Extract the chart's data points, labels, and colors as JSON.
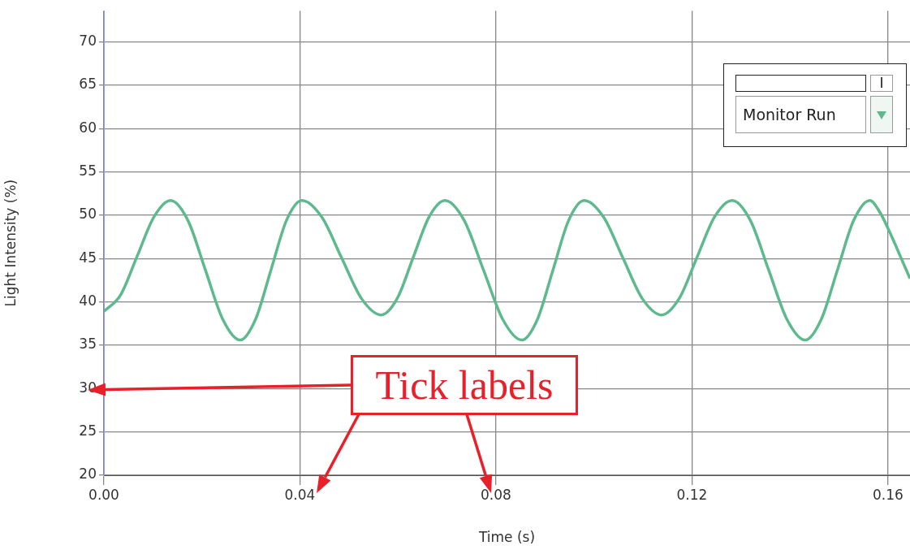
{
  "chart_data": {
    "type": "line",
    "xlabel": "Time (s)",
    "ylabel": "Light Intensity (%)",
    "annotations": [
      "Tick labels",
      "Monitor Run",
      "I"
    ],
    "x": [
      0,
      0.0034,
      0.0068,
      0.0102,
      0.0136,
      0.01715,
      0.0207,
      0.02425,
      0.0278,
      0.03095,
      0.0341,
      0.03725,
      0.0404,
      0.04445,
      0.0485,
      0.05255,
      0.0566,
      0.05985,
      0.0631,
      0.06635,
      0.0696,
      0.07353,
      0.07745,
      0.08138,
      0.0853,
      0.08848,
      0.09165,
      0.09483,
      0.098,
      0.10195,
      0.1059,
      0.10985,
      0.1138,
      0.1174,
      0.121,
      0.1246,
      0.1282,
      0.13193,
      0.13565,
      0.13938,
      0.1431,
      0.1464,
      0.1497,
      0.153,
      0.1563,
      0.1584,
      0.1604,
      0.1625,
      0.1645
    ],
    "values": [
      38.9,
      40.8,
      45.3,
      49.8,
      51.7,
      49.4,
      43.7,
      38,
      35.6,
      38,
      43.7,
      49.4,
      51.7,
      49.8,
      45.1,
      40.4,
      38.5,
      40.4,
      45.1,
      49.8,
      51.7,
      49.4,
      43.7,
      38,
      35.6,
      38,
      43.7,
      49.4,
      51.7,
      49.8,
      45.1,
      40.4,
      38.5,
      40.4,
      45.1,
      49.8,
      51.7,
      49.4,
      43.7,
      38,
      35.6,
      38,
      43.7,
      49.4,
      51.7,
      50.3,
      48,
      45.3,
      42.7
    ],
    "color": "#5fb98f",
    "marker": "none",
    "grid": true,
    "xlim": [
      0,
      0.1645
    ],
    "xticks": [
      {
        "value": 0,
        "label": "0.00"
      },
      0.04,
      0.08,
      0.12,
      0.16
    ],
    "ylim": [
      20,
      73.6
    ],
    "yticks": [
      20,
      25,
      30,
      35,
      40,
      45,
      50,
      55,
      60,
      65,
      70
    ]
  }
}
